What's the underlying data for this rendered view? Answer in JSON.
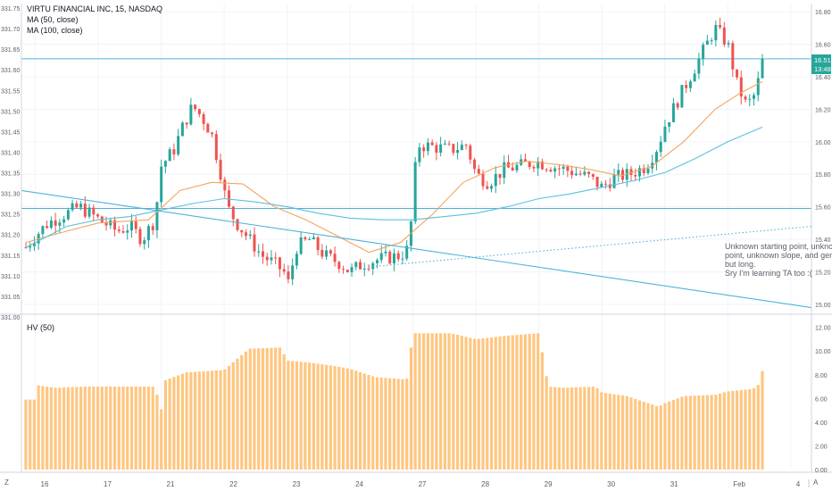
{
  "legend": {
    "title": "VIRTU FINANCIAL INC, 15, NASDAQ",
    "ma50": "MA (50, close)",
    "ma100": "MA (100, close)",
    "hv": "HV (50)"
  },
  "price_tag": {
    "value": "16.51",
    "time": "13:48"
  },
  "annotation": [
    "Unknown starting point, unknown ending",
    "point, unknown slope, and general direction",
    "but long.",
    "Sry I'm learning TA too :("
  ],
  "colors": {
    "up": "#26a69a",
    "down": "#ef5350",
    "ma50": "#f7a35c",
    "ma100": "#5bc0de",
    "trend": "#4fb3d9",
    "hv_bar": "#ffc680",
    "grid": "#f0f3fa",
    "axis_text": "#5d606b",
    "tag_bg": "#26a69a"
  },
  "chart_data": [
    {
      "type": "candlestick",
      "title": "VIRTU FINANCIAL INC, 15, NASDAQ",
      "y_left": {
        "ticks": [
          "331.00",
          "331.05",
          "331.10",
          "331.15",
          "331.20",
          "331.25",
          "331.30",
          "331.35",
          "331.40",
          "331.45",
          "331.50",
          "331.55",
          "331.60",
          "331.65",
          "331.70",
          "331.75"
        ],
        "range": [
          331.0,
          331.75
        ]
      },
      "y_right": {
        "ticks": [
          "15.00",
          "15.20",
          "15.40",
          "15.60",
          "15.80",
          "16.00",
          "16.20",
          "16.40",
          "16.60",
          "16.80"
        ],
        "range": [
          14.95,
          16.85
        ]
      },
      "x_ticks": [
        {
          "label": "16",
          "x": 0.0
        },
        {
          "label": "17",
          "x": 1.0
        },
        {
          "label": "21",
          "x": 2.0
        },
        {
          "label": "22",
          "x": 3.0
        },
        {
          "label": "23",
          "x": 4.0
        },
        {
          "label": "24",
          "x": 5.0
        },
        {
          "label": "27",
          "x": 6.0
        },
        {
          "label": "28",
          "x": 7.0
        },
        {
          "label": "29",
          "x": 8.0
        },
        {
          "label": "30",
          "x": 9.0
        },
        {
          "label": "31",
          "x": 10.0
        },
        {
          "label": "Feb",
          "x": 11.0
        },
        {
          "label": "4",
          "x": 12.0
        }
      ],
      "x_range": [
        -0.22,
        12.33
      ],
      "ohlc_anchors": [
        [
          -0.15,
          15.35
        ],
        [
          0.0,
          15.42
        ],
        [
          0.2,
          15.5
        ],
        [
          0.45,
          15.55
        ],
        [
          0.7,
          15.6
        ],
        [
          0.9,
          15.55
        ],
        [
          1.1,
          15.5
        ],
        [
          1.3,
          15.45
        ],
        [
          1.5,
          15.48
        ],
        [
          1.7,
          15.4
        ],
        [
          1.9,
          15.52
        ],
        [
          2.0,
          15.85
        ],
        [
          2.2,
          15.95
        ],
        [
          2.35,
          16.1
        ],
        [
          2.5,
          16.22
        ],
        [
          2.65,
          16.15
        ],
        [
          2.8,
          16.05
        ],
        [
          2.95,
          15.8
        ],
        [
          3.05,
          15.6
        ],
        [
          3.2,
          15.5
        ],
        [
          3.4,
          15.4
        ],
        [
          3.6,
          15.3
        ],
        [
          3.8,
          15.25
        ],
        [
          3.95,
          15.2
        ],
        [
          4.0,
          15.1
        ],
        [
          4.15,
          15.35
        ],
        [
          4.35,
          15.4
        ],
        [
          4.6,
          15.3
        ],
        [
          4.85,
          15.25
        ],
        [
          5.0,
          15.2
        ],
        [
          5.2,
          15.25
        ],
        [
          5.5,
          15.28
        ],
        [
          5.8,
          15.3
        ],
        [
          5.95,
          15.35
        ],
        [
          6.0,
          15.75
        ],
        [
          6.1,
          15.98
        ],
        [
          6.3,
          15.97
        ],
        [
          6.6,
          15.95
        ],
        [
          6.85,
          15.98
        ],
        [
          7.0,
          15.8
        ],
        [
          7.2,
          15.75
        ],
        [
          7.45,
          15.83
        ],
        [
          7.7,
          15.85
        ],
        [
          7.95,
          15.88
        ],
        [
          8.2,
          15.85
        ],
        [
          8.5,
          15.82
        ],
        [
          8.8,
          15.78
        ],
        [
          9.0,
          15.72
        ],
        [
          9.2,
          15.78
        ],
        [
          9.45,
          15.8
        ],
        [
          9.7,
          15.85
        ],
        [
          9.9,
          15.98
        ],
        [
          10.0,
          16.1
        ],
        [
          10.2,
          16.25
        ],
        [
          10.4,
          16.4
        ],
        [
          10.6,
          16.55
        ],
        [
          10.8,
          16.7
        ],
        [
          11.0,
          16.6
        ],
        [
          11.15,
          16.35
        ],
        [
          11.3,
          16.22
        ],
        [
          11.45,
          16.3
        ],
        [
          11.55,
          16.51
        ]
      ],
      "series": [
        {
          "name": "MA (50, close)",
          "values": [
            [
              -0.15,
              15.38
            ],
            [
              0.5,
              15.45
            ],
            [
              1.0,
              15.5
            ],
            [
              1.8,
              15.52
            ],
            [
              2.3,
              15.7
            ],
            [
              2.8,
              15.75
            ],
            [
              3.3,
              15.74
            ],
            [
              3.8,
              15.6
            ],
            [
              4.3,
              15.52
            ],
            [
              4.8,
              15.42
            ],
            [
              5.3,
              15.32
            ],
            [
              5.8,
              15.38
            ],
            [
              6.3,
              15.55
            ],
            [
              6.8,
              15.75
            ],
            [
              7.3,
              15.84
            ],
            [
              7.8,
              15.88
            ],
            [
              8.3,
              15.86
            ],
            [
              8.8,
              15.83
            ],
            [
              9.3,
              15.79
            ],
            [
              9.8,
              15.85
            ],
            [
              10.3,
              16.0
            ],
            [
              10.8,
              16.2
            ],
            [
              11.2,
              16.3
            ],
            [
              11.55,
              16.37
            ]
          ]
        },
        {
          "name": "MA (100, close)",
          "values": [
            [
              -0.15,
              15.35
            ],
            [
              0.5,
              15.48
            ],
            [
              1.0,
              15.52
            ],
            [
              1.5,
              15.54
            ],
            [
              2.0,
              15.58
            ],
            [
              2.5,
              15.62
            ],
            [
              3.0,
              15.65
            ],
            [
              3.5,
              15.63
            ],
            [
              4.0,
              15.6
            ],
            [
              4.5,
              15.56
            ],
            [
              5.0,
              15.53
            ],
            [
              5.5,
              15.52
            ],
            [
              6.0,
              15.52
            ],
            [
              6.5,
              15.54
            ],
            [
              7.0,
              15.56
            ],
            [
              7.5,
              15.6
            ],
            [
              8.0,
              15.65
            ],
            [
              8.5,
              15.68
            ],
            [
              9.0,
              15.72
            ],
            [
              9.5,
              15.76
            ],
            [
              10.0,
              15.81
            ],
            [
              10.5,
              15.9
            ],
            [
              11.0,
              16.0
            ],
            [
              11.55,
              16.09
            ]
          ]
        }
      ],
      "horizontal_lines": [
        16.51,
        15.59
      ],
      "trend_lines": [
        {
          "from": [
            -0.22,
            15.7
          ],
          "to": [
            12.33,
            14.98
          ],
          "style": "solid"
        },
        {
          "from": [
            5.3,
            15.23
          ],
          "to": [
            12.33,
            15.48
          ],
          "style": "dotted"
        }
      ]
    },
    {
      "type": "bar",
      "title": "HV (50)",
      "y_ticks": [
        "0.00",
        "2.00",
        "4.00",
        "6.00",
        "8.00",
        "10.00",
        "12.00"
      ],
      "ylim": [
        0,
        12.2
      ],
      "value_anchors": [
        [
          -0.15,
          5.9
        ],
        [
          0.0,
          5.9
        ],
        [
          0.05,
          7.1
        ],
        [
          0.3,
          6.9
        ],
        [
          0.8,
          7.0
        ],
        [
          1.4,
          7.0
        ],
        [
          1.9,
          7.0
        ],
        [
          2.0,
          5.0
        ],
        [
          2.05,
          7.5
        ],
        [
          2.4,
          8.2
        ],
        [
          3.0,
          8.4
        ],
        [
          3.4,
          10.2
        ],
        [
          3.9,
          10.3
        ],
        [
          4.0,
          9.2
        ],
        [
          4.4,
          9.0
        ],
        [
          4.8,
          8.7
        ],
        [
          5.0,
          8.5
        ],
        [
          5.4,
          7.8
        ],
        [
          5.9,
          7.6
        ],
        [
          6.0,
          11.5
        ],
        [
          6.6,
          11.5
        ],
        [
          7.0,
          11.0
        ],
        [
          7.5,
          11.3
        ],
        [
          8.0,
          11.5
        ],
        [
          8.15,
          7.0
        ],
        [
          8.4,
          6.9
        ],
        [
          8.9,
          7.0
        ],
        [
          9.0,
          6.5
        ],
        [
          9.4,
          6.2
        ],
        [
          9.9,
          5.3
        ],
        [
          10.0,
          5.6
        ],
        [
          10.3,
          6.2
        ],
        [
          10.8,
          6.3
        ],
        [
          11.0,
          6.6
        ],
        [
          11.4,
          6.8
        ],
        [
          11.5,
          7.2
        ],
        [
          11.55,
          8.3
        ]
      ]
    }
  ]
}
